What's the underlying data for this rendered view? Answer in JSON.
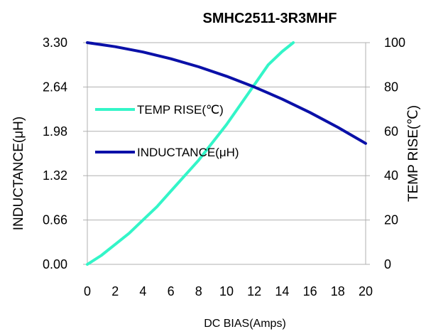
{
  "chart_data": {
    "type": "line",
    "title": "SMHC2511-3R3MHF",
    "xlabel": "DC  BIAS(Amps)",
    "ylabel_left": "INDUCTANCE(μH)",
    "ylabel_right": "TEMP RISE(℃)",
    "xlim": [
      0,
      20
    ],
    "ylim_left": [
      0,
      3.3
    ],
    "ylim_right": [
      0,
      100
    ],
    "x_ticks": [
      "0",
      "2",
      "4",
      "6",
      "8",
      "10",
      "12",
      "14",
      "16",
      "18",
      "20"
    ],
    "y_left_ticks": [
      "0.00",
      "0.66",
      "1.32",
      "1.98",
      "2.64",
      "3.30"
    ],
    "y_right_ticks": [
      "0",
      "20",
      "40",
      "60",
      "80",
      "100"
    ],
    "legend_position": "left",
    "series": [
      {
        "name": "TEMP RISE(℃)",
        "axis": "right",
        "color": "#33f5c8",
        "x": [
          0,
          1,
          2,
          3,
          4,
          5,
          6,
          7,
          8,
          9,
          10,
          11,
          12,
          13,
          14,
          14.8
        ],
        "y": [
          0,
          4,
          9,
          14,
          20,
          26,
          33,
          40,
          47,
          55,
          63,
          72,
          81,
          90,
          96,
          100
        ]
      },
      {
        "name": "INDUCTANCE(μH)",
        "axis": "left",
        "color": "#0a10a8",
        "x": [
          0,
          2,
          4,
          6,
          8,
          10,
          12,
          14,
          16,
          18,
          20
        ],
        "y": [
          3.3,
          3.24,
          3.16,
          3.06,
          2.94,
          2.8,
          2.64,
          2.46,
          2.26,
          2.04,
          1.8
        ]
      }
    ]
  }
}
